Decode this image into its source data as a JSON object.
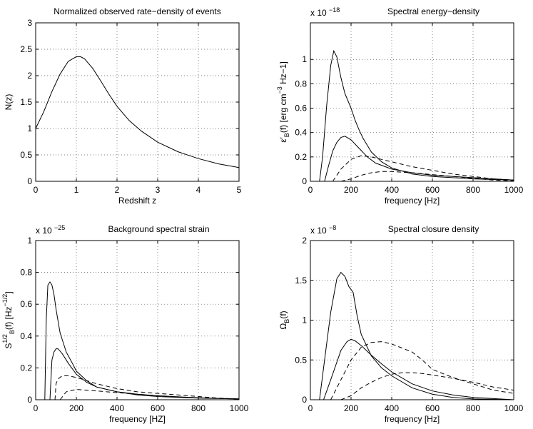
{
  "chart_data": [
    {
      "type": "line",
      "title": "Normalized observed rate−density of events",
      "xlabel": "Redshift z",
      "ylabel": "N(z)",
      "ylabel_parts": [
        "N(z)",
        "",
        "",
        "",
        ""
      ],
      "exponent": "",
      "xlim": [
        0,
        5
      ],
      "ylim": [
        0,
        3
      ],
      "xticks": [
        "0",
        "1",
        "2",
        "3",
        "4",
        "5"
      ],
      "yticks": [
        "0",
        "0.5",
        "1",
        "1.5",
        "2",
        "2.5",
        "3"
      ],
      "grid": true,
      "series": [
        {
          "style": "solid",
          "x": [
            0,
            0.2,
            0.4,
            0.6,
            0.8,
            1.0,
            1.1,
            1.2,
            1.4,
            1.6,
            1.8,
            2.0,
            2.3,
            2.6,
            3.0,
            3.5,
            4.0,
            4.5,
            5.0
          ],
          "y": [
            1.0,
            1.32,
            1.7,
            2.03,
            2.27,
            2.36,
            2.36,
            2.32,
            2.14,
            1.9,
            1.65,
            1.42,
            1.15,
            0.95,
            0.74,
            0.56,
            0.43,
            0.33,
            0.26
          ]
        }
      ]
    },
    {
      "type": "line",
      "title": "Spectral energy−density",
      "xlabel": "frequency [Hz]",
      "ylabel": "ε′B(f) [erg cm−3 Hz−1]",
      "ylabel_parts": [
        "ε′",
        "B",
        "(f) [erg cm",
        "−3",
        " Hz−1]"
      ],
      "exponent": "x 10−18",
      "xlim": [
        0,
        1000
      ],
      "ylim": [
        0,
        1.3
      ],
      "xticks": [
        "0",
        "200",
        "400",
        "600",
        "800",
        "1000"
      ],
      "yticks": [
        "0",
        "0.2",
        "0.4",
        "0.6",
        "0.8",
        "1"
      ],
      "grid": true,
      "series": [
        {
          "style": "solid",
          "x": [
            45,
            60,
            80,
            100,
            115,
            130,
            150,
            170,
            200,
            220,
            240,
            260,
            300,
            350,
            400,
            500,
            600,
            700,
            800,
            1000
          ],
          "y": [
            0,
            0.2,
            0.62,
            0.95,
            1.07,
            1.02,
            0.85,
            0.72,
            0.6,
            0.5,
            0.42,
            0.35,
            0.24,
            0.16,
            0.11,
            0.06,
            0.04,
            0.03,
            0.02,
            0.01
          ]
        },
        {
          "style": "solid",
          "x": [
            70,
            90,
            110,
            130,
            150,
            170,
            200,
            240,
            280,
            320,
            400,
            500,
            600,
            700,
            800,
            1000
          ],
          "y": [
            0,
            0.13,
            0.25,
            0.32,
            0.36,
            0.37,
            0.34,
            0.27,
            0.2,
            0.15,
            0.1,
            0.07,
            0.05,
            0.04,
            0.03,
            0.01
          ]
        },
        {
          "style": "dashed",
          "x": [
            110,
            150,
            200,
            250,
            300,
            350,
            400,
            450,
            500,
            600,
            700,
            800,
            900,
            1000
          ],
          "y": [
            0,
            0.1,
            0.18,
            0.21,
            0.2,
            0.18,
            0.16,
            0.14,
            0.12,
            0.09,
            0.06,
            0.04,
            0.02,
            0.01
          ]
        },
        {
          "style": "dashed",
          "x": [
            150,
            200,
            250,
            300,
            350,
            400,
            450,
            500,
            600,
            700,
            800,
            900,
            1000
          ],
          "y": [
            0,
            0.02,
            0.05,
            0.07,
            0.08,
            0.08,
            0.075,
            0.07,
            0.055,
            0.04,
            0.025,
            0.01,
            0.005
          ]
        }
      ]
    },
    {
      "type": "line",
      "title": "Background spectral strain",
      "xlabel": "frequency [HZ]",
      "ylabel": "S1/2B(f) [Hz−1/2]",
      "ylabel_parts": [
        "S",
        "B",
        "(f) [Hz",
        "−1/2",
        "]"
      ],
      "ylabel_sup": "1/2",
      "exponent": "x 10−25",
      "xlim": [
        0,
        1000
      ],
      "ylim": [
        0,
        1
      ],
      "xticks": [
        "0",
        "200",
        "400",
        "600",
        "800",
        "1000"
      ],
      "yticks": [
        "0",
        "0.2",
        "0.4",
        "0.6",
        "0.8",
        "1"
      ],
      "grid": true,
      "series": [
        {
          "style": "solid",
          "x": [
            45,
            52,
            60,
            70,
            80,
            90,
            100,
            120,
            150,
            180,
            200,
            250,
            300,
            400,
            500,
            600,
            800,
            1000
          ],
          "y": [
            0,
            0.5,
            0.72,
            0.74,
            0.72,
            0.66,
            0.57,
            0.42,
            0.3,
            0.23,
            0.18,
            0.12,
            0.08,
            0.05,
            0.03,
            0.02,
            0.01,
            0.005
          ]
        },
        {
          "style": "solid",
          "x": [
            70,
            80,
            90,
            100,
            110,
            130,
            160,
            200,
            250,
            300,
            400,
            500,
            600,
            800,
            1000
          ],
          "y": [
            0,
            0.25,
            0.3,
            0.32,
            0.32,
            0.29,
            0.23,
            0.16,
            0.11,
            0.08,
            0.05,
            0.035,
            0.025,
            0.012,
            0.005
          ]
        },
        {
          "style": "dashed",
          "x": [
            95,
            100,
            110,
            130,
            160,
            200,
            250,
            300,
            400,
            500,
            600,
            700,
            800,
            900,
            1000
          ],
          "y": [
            0,
            0.1,
            0.13,
            0.15,
            0.15,
            0.14,
            0.12,
            0.1,
            0.07,
            0.05,
            0.04,
            0.03,
            0.02,
            0.01,
            0.005
          ]
        },
        {
          "style": "dashed",
          "x": [
            120,
            150,
            200,
            250,
            300,
            400,
            500,
            600,
            700,
            800,
            900,
            1000
          ],
          "y": [
            0,
            0.05,
            0.065,
            0.06,
            0.055,
            0.045,
            0.035,
            0.025,
            0.018,
            0.012,
            0.008,
            0.005
          ]
        }
      ]
    },
    {
      "type": "line",
      "title": "Spectral closure density",
      "xlabel": "frequency [Hz]",
      "ylabel": "ΩB(f)",
      "ylabel_parts": [
        "Ω",
        "B",
        "(f)",
        "",
        ""
      ],
      "exponent": "x 10−8",
      "xlim": [
        0,
        1000
      ],
      "ylim": [
        0,
        2
      ],
      "xticks": [
        "0",
        "200",
        "400",
        "600",
        "800",
        "1000"
      ],
      "yticks": [
        "0",
        "0.5",
        "1",
        "1.5",
        "2"
      ],
      "grid": true,
      "series": [
        {
          "style": "solid",
          "x": [
            45,
            70,
            100,
            130,
            150,
            170,
            190,
            210,
            230,
            250,
            300,
            350,
            400,
            500,
            600,
            700,
            800,
            1000
          ],
          "y": [
            0,
            0.5,
            1.1,
            1.52,
            1.6,
            1.55,
            1.42,
            1.35,
            1.05,
            0.82,
            0.55,
            0.4,
            0.3,
            0.15,
            0.07,
            0.03,
            0.01,
            0
          ]
        },
        {
          "style": "solid",
          "x": [
            65,
            100,
            150,
            180,
            200,
            220,
            250,
            300,
            350,
            400,
            500,
            600,
            700,
            800,
            1000
          ],
          "y": [
            0,
            0.25,
            0.62,
            0.73,
            0.76,
            0.74,
            0.68,
            0.56,
            0.45,
            0.35,
            0.2,
            0.11,
            0.06,
            0.03,
            0
          ]
        },
        {
          "style": "dashed",
          "x": [
            100,
            150,
            200,
            250,
            300,
            350,
            400,
            450,
            500,
            550,
            600,
            700,
            800,
            900,
            1000
          ],
          "y": [
            0,
            0.25,
            0.5,
            0.66,
            0.72,
            0.73,
            0.7,
            0.65,
            0.6,
            0.5,
            0.38,
            0.28,
            0.2,
            0.12,
            0.08
          ]
        },
        {
          "style": "dashed",
          "x": [
            150,
            200,
            250,
            300,
            350,
            400,
            450,
            500,
            550,
            600,
            700,
            800,
            900,
            1000
          ],
          "y": [
            0,
            0.05,
            0.15,
            0.22,
            0.28,
            0.32,
            0.34,
            0.34,
            0.33,
            0.31,
            0.27,
            0.22,
            0.16,
            0.12
          ]
        }
      ]
    }
  ]
}
